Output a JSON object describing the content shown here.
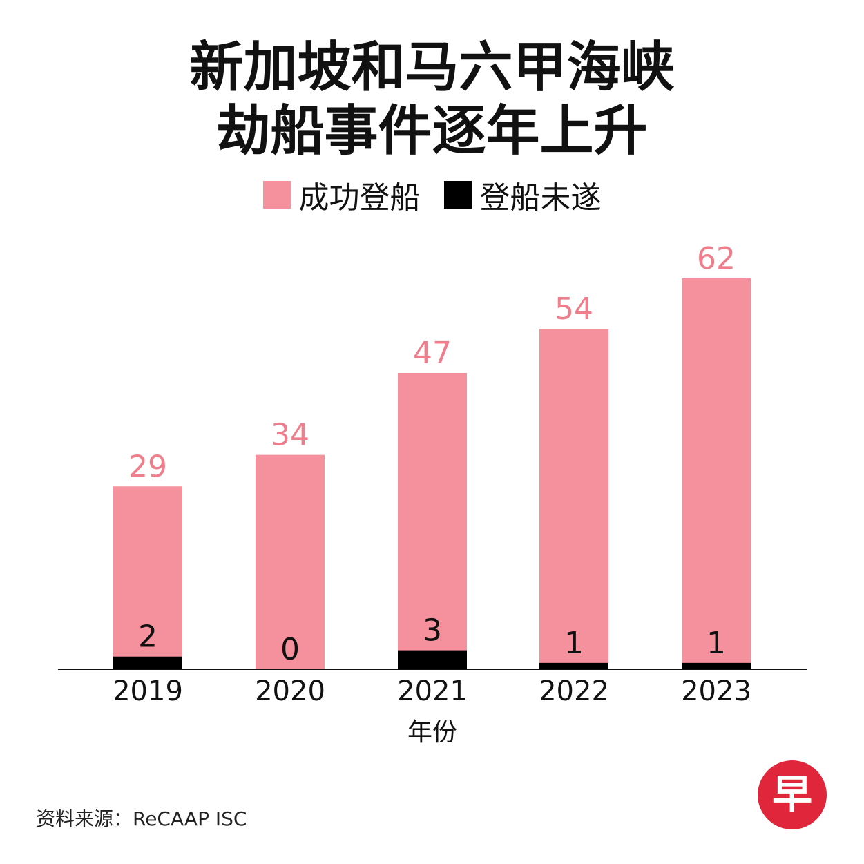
{
  "title": {
    "line1": "新加坡和马六甲海峡",
    "line2": "劫船事件逐年上升"
  },
  "legend": [
    {
      "label": "成功登船",
      "color": "#f4919d"
    },
    {
      "label": "登船未遂",
      "color": "#000000"
    }
  ],
  "source": "资料来源：ReCAAP ISC",
  "logo": {
    "glyph": "早",
    "color": "#e0263a"
  },
  "chart_data": {
    "type": "bar",
    "xlabel": "年份",
    "ylabel": "",
    "categories": [
      "2019",
      "2020",
      "2021",
      "2022",
      "2023"
    ],
    "series": [
      {
        "name": "成功登船",
        "color": "#f4919d",
        "label_color": "#ee7e8b",
        "values": [
          29,
          34,
          47,
          54,
          62
        ]
      },
      {
        "name": "登船未遂",
        "color": "#000000",
        "label_color": "#111111",
        "values": [
          2,
          0,
          3,
          1,
          1
        ]
      }
    ],
    "ylim": [
      0,
      62
    ],
    "grid": false,
    "legend_position": "top"
  }
}
